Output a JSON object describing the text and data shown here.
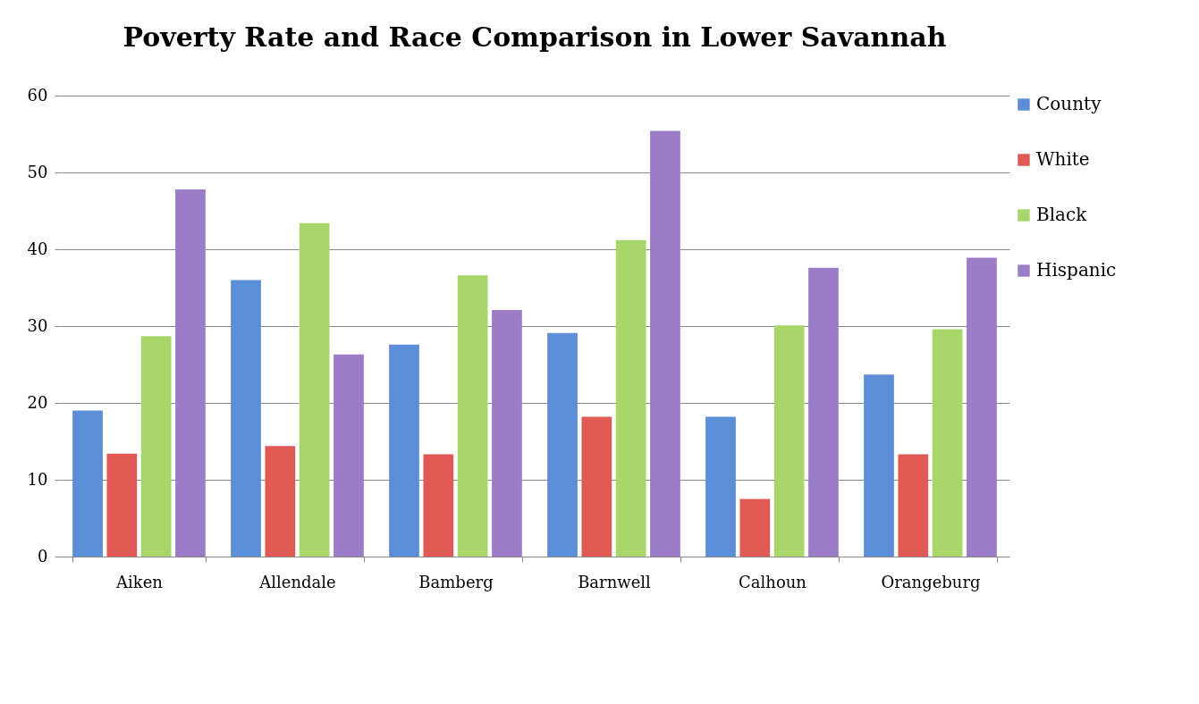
{
  "chart_data": {
    "type": "bar",
    "title": "Poverty Rate and Race Comparison in Lower Savannah",
    "categories": [
      "Aiken",
      "Allendale",
      "Bamberg",
      "Barnwell",
      "Calhoun",
      "Orangeburg"
    ],
    "series": [
      {
        "name": "County",
        "color": "#5b8ed6",
        "values": [
          19,
          36,
          27.6,
          29.1,
          18.2,
          23.7
        ]
      },
      {
        "name": "White",
        "color": "#e05a55",
        "values": [
          13.4,
          14.4,
          13.3,
          18.2,
          7.5,
          13.3
        ]
      },
      {
        "name": "Black",
        "color": "#a8d66b",
        "values": [
          28.7,
          43.4,
          36.6,
          41.2,
          30.1,
          29.6
        ]
      },
      {
        "name": "Hispanic",
        "color": "#9b7cc6",
        "values": [
          47.8,
          26.3,
          32.1,
          55.4,
          37.6,
          38.9
        ]
      }
    ],
    "ylim": [
      0,
      60
    ],
    "yticks": [
      0,
      10,
      20,
      30,
      40,
      50,
      60
    ],
    "grid": "y",
    "legend": "right"
  }
}
